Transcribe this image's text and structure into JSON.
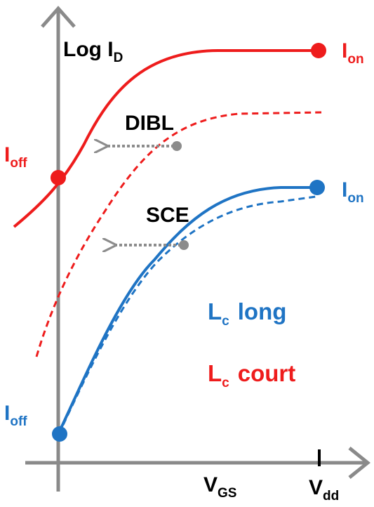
{
  "colors": {
    "axis": "#8a8a8a",
    "red": "#ee1c1c",
    "blue": "#1f74c4",
    "gray": "#8c8c8c",
    "black": "#000000"
  },
  "axes": {
    "y_label_main": "Log I",
    "y_label_sub": "D",
    "x_label_main": "V",
    "x_label_sub": "GS",
    "vdd_main": "V",
    "vdd_sub": "dd"
  },
  "labels": {
    "ion_red_main": "I",
    "ion_red_sub": "on",
    "ion_blue_main": "I",
    "ion_blue_sub": "on",
    "ioff_red_main": "I",
    "ioff_red_sub": "off",
    "ioff_blue_main": "I",
    "ioff_blue_sub": "off",
    "dibl": "DIBL",
    "sce": "SCE"
  },
  "legend": {
    "long_main": "L",
    "long_sub": "c",
    "long_text": "long",
    "court_main": "L",
    "court_sub": "c",
    "court_text": "court"
  }
}
